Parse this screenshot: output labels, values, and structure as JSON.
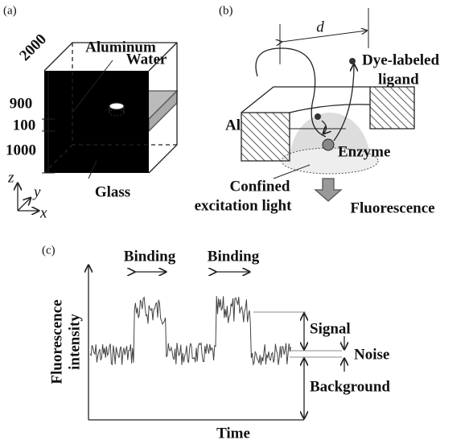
{
  "panel_a": {
    "label": "(a)",
    "materials": [
      "Aluminum",
      "Water",
      "Glass"
    ],
    "dimensions": [
      2000,
      900,
      100,
      1000
    ],
    "axes": [
      "z",
      "y",
      "x"
    ]
  },
  "panel_b": {
    "label": "(b)",
    "distance": "d",
    "ligand": [
      "Dye-labeled",
      "ligand"
    ],
    "metal": "Al",
    "enzyme": "Enzyme",
    "light": [
      "Confined",
      "excitation light"
    ],
    "output": "Fluorescence"
  },
  "panel_c": {
    "label": "(c)",
    "events": [
      "Binding",
      "Binding"
    ],
    "levels": [
      "Signal",
      "Noise",
      "Background"
    ],
    "x_axis_label": "Time",
    "y_axis_label": [
      "Fluorescence",
      "intensity"
    ]
  }
}
